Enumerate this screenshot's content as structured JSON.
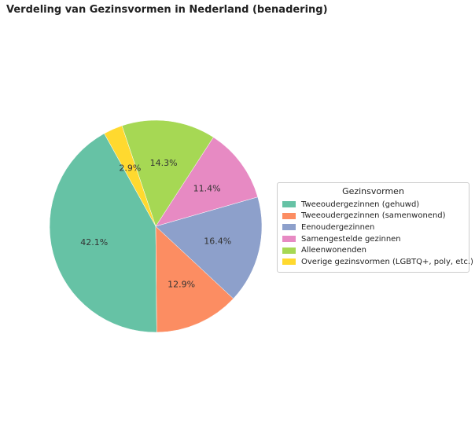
{
  "chart_data": {
    "type": "pie",
    "title": "Verdeling van Gezinsvormen in Nederland (benadering)",
    "legend_title": "Gezinsvormen",
    "legend_position": "right",
    "start_angle_deg": 119,
    "direction": "counterclockwise",
    "categories": [
      "Tweeoudergezinnen (gehuwd)",
      "Tweeoudergezinnen (samenwonend)",
      "Eenoudergezinnen",
      "Samengestelde gezinnen",
      "Alleenwonenden",
      "Overige gezinsvormen (LGBTQ+, poly, etc.)"
    ],
    "values": [
      42.1,
      12.9,
      16.4,
      11.4,
      14.3,
      2.9
    ],
    "labels": [
      "42.1%",
      "12.9%",
      "16.4%",
      "11.4%",
      "14.3%",
      "2.9%"
    ],
    "colors": [
      "#66c2a5",
      "#fc8d62",
      "#8da0cb",
      "#e78ac3",
      "#a6d854",
      "#ffd92f"
    ]
  }
}
